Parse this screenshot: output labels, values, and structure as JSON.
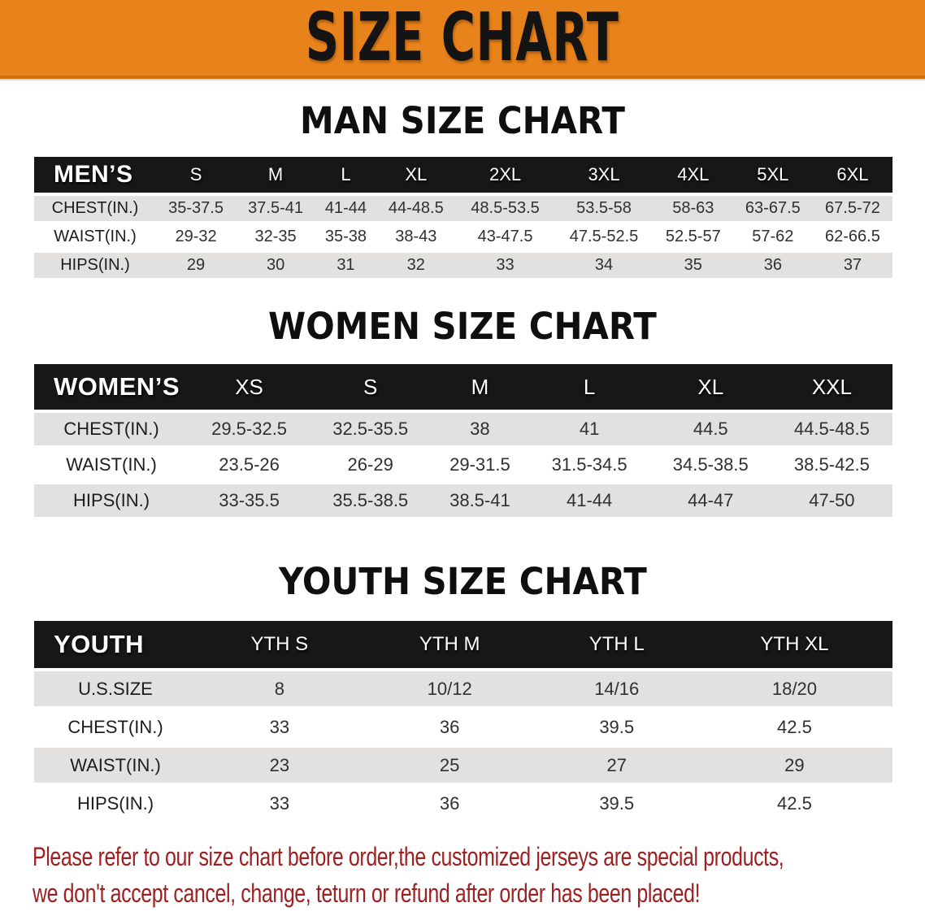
{
  "banner": {
    "title": "SIZE CHART"
  },
  "colors": {
    "banner_bg": "#e8821a",
    "banner_edge": "#cf6f12",
    "header_bar": "#171717",
    "row_alt": "#e2e1df",
    "disclaimer_red": "#9e2020"
  },
  "sections": [
    {
      "title": "MAN SIZE CHART",
      "header_label": "MEN’S",
      "sizes": [
        "S",
        "M",
        "L",
        "XL",
        "2XL",
        "3XL",
        "4XL",
        "5XL",
        "6XL"
      ],
      "rows": [
        {
          "label": "CHEST(IN.)",
          "values": [
            "35-37.5",
            "37.5-41",
            "41-44",
            "44-48.5",
            "48.5-53.5",
            "53.5-58",
            "58-63",
            "63-67.5",
            "67.5-72"
          ]
        },
        {
          "label": "WAIST(IN.)",
          "values": [
            "29-32",
            "32-35",
            "35-38",
            "38-43",
            "43-47.5",
            "47.5-52.5",
            "52.5-57",
            "57-62",
            "62-66.5"
          ]
        },
        {
          "label": "HIPS(IN.)",
          "values": [
            "29",
            "30",
            "31",
            "32",
            "33",
            "34",
            "35",
            "36",
            "37"
          ]
        }
      ]
    },
    {
      "title": "WOMEN SIZE CHART",
      "header_label": "WOMEN’S",
      "sizes": [
        "XS",
        "S",
        "M",
        "L",
        "XL",
        "XXL"
      ],
      "rows": [
        {
          "label": "CHEST(IN.)",
          "values": [
            "29.5-32.5",
            "32.5-35.5",
            "38",
            "41",
            "44.5",
            "44.5-48.5"
          ]
        },
        {
          "label": "WAIST(IN.)",
          "values": [
            "23.5-26",
            "26-29",
            "29-31.5",
            "31.5-34.5",
            "34.5-38.5",
            "38.5-42.5"
          ]
        },
        {
          "label": "HIPS(IN.)",
          "values": [
            "33-35.5",
            "35.5-38.5",
            "38.5-41",
            "41-44",
            "44-47",
            "47-50"
          ]
        }
      ]
    },
    {
      "title": "YOUTH SIZE CHART",
      "header_label": "YOUTH",
      "sizes": [
        "YTH S",
        "YTH M",
        "YTH L",
        "YTH XL"
      ],
      "rows": [
        {
          "label": "U.S.SIZE",
          "values": [
            "8",
            "10/12",
            "14/16",
            "18/20"
          ]
        },
        {
          "label": "CHEST(IN.)",
          "values": [
            "33",
            "36",
            "39.5",
            "42.5"
          ]
        },
        {
          "label": "WAIST(IN.)",
          "values": [
            "23",
            "25",
            "27",
            "29"
          ]
        },
        {
          "label": "HIPS(IN.)",
          "values": [
            "33",
            "36",
            "39.5",
            "42.5"
          ]
        }
      ]
    }
  ],
  "disclaimer": {
    "line1": "Please refer to our size chart before order,the customized jerseys are special products,",
    "line2": "we don't accept cancel, change, teturn or refund after order has been placed!"
  },
  "chart_data": [
    {
      "type": "table",
      "title": "MAN SIZE CHART",
      "columns": [
        "MEN’S",
        "S",
        "M",
        "L",
        "XL",
        "2XL",
        "3XL",
        "4XL",
        "5XL",
        "6XL"
      ],
      "rows": [
        [
          "CHEST(IN.)",
          "35-37.5",
          "37.5-41",
          "41-44",
          "44-48.5",
          "48.5-53.5",
          "53.5-58",
          "58-63",
          "63-67.5",
          "67.5-72"
        ],
        [
          "WAIST(IN.)",
          "29-32",
          "32-35",
          "35-38",
          "38-43",
          "43-47.5",
          "47.5-52.5",
          "52.5-57",
          "57-62",
          "62-66.5"
        ],
        [
          "HIPS(IN.)",
          "29",
          "30",
          "31",
          "32",
          "33",
          "34",
          "35",
          "36",
          "37"
        ]
      ]
    },
    {
      "type": "table",
      "title": "WOMEN SIZE CHART",
      "columns": [
        "WOMEN’S",
        "XS",
        "S",
        "M",
        "L",
        "XL",
        "XXL"
      ],
      "rows": [
        [
          "CHEST(IN.)",
          "29.5-32.5",
          "32.5-35.5",
          "38",
          "41",
          "44.5",
          "44.5-48.5"
        ],
        [
          "WAIST(IN.)",
          "23.5-26",
          "26-29",
          "29-31.5",
          "31.5-34.5",
          "34.5-38.5",
          "38.5-42.5"
        ],
        [
          "HIPS(IN.)",
          "33-35.5",
          "35.5-38.5",
          "38.5-41",
          "41-44",
          "44-47",
          "47-50"
        ]
      ]
    },
    {
      "type": "table",
      "title": "YOUTH SIZE CHART",
      "columns": [
        "YOUTH",
        "YTH S",
        "YTH M",
        "YTH L",
        "YTH XL"
      ],
      "rows": [
        [
          "U.S.SIZE",
          "8",
          "10/12",
          "14/16",
          "18/20"
        ],
        [
          "CHEST(IN.)",
          "33",
          "36",
          "39.5",
          "42.5"
        ],
        [
          "WAIST(IN.)",
          "23",
          "25",
          "27",
          "29"
        ],
        [
          "HIPS(IN.)",
          "33",
          "36",
          "39.5",
          "42.5"
        ]
      ]
    }
  ]
}
